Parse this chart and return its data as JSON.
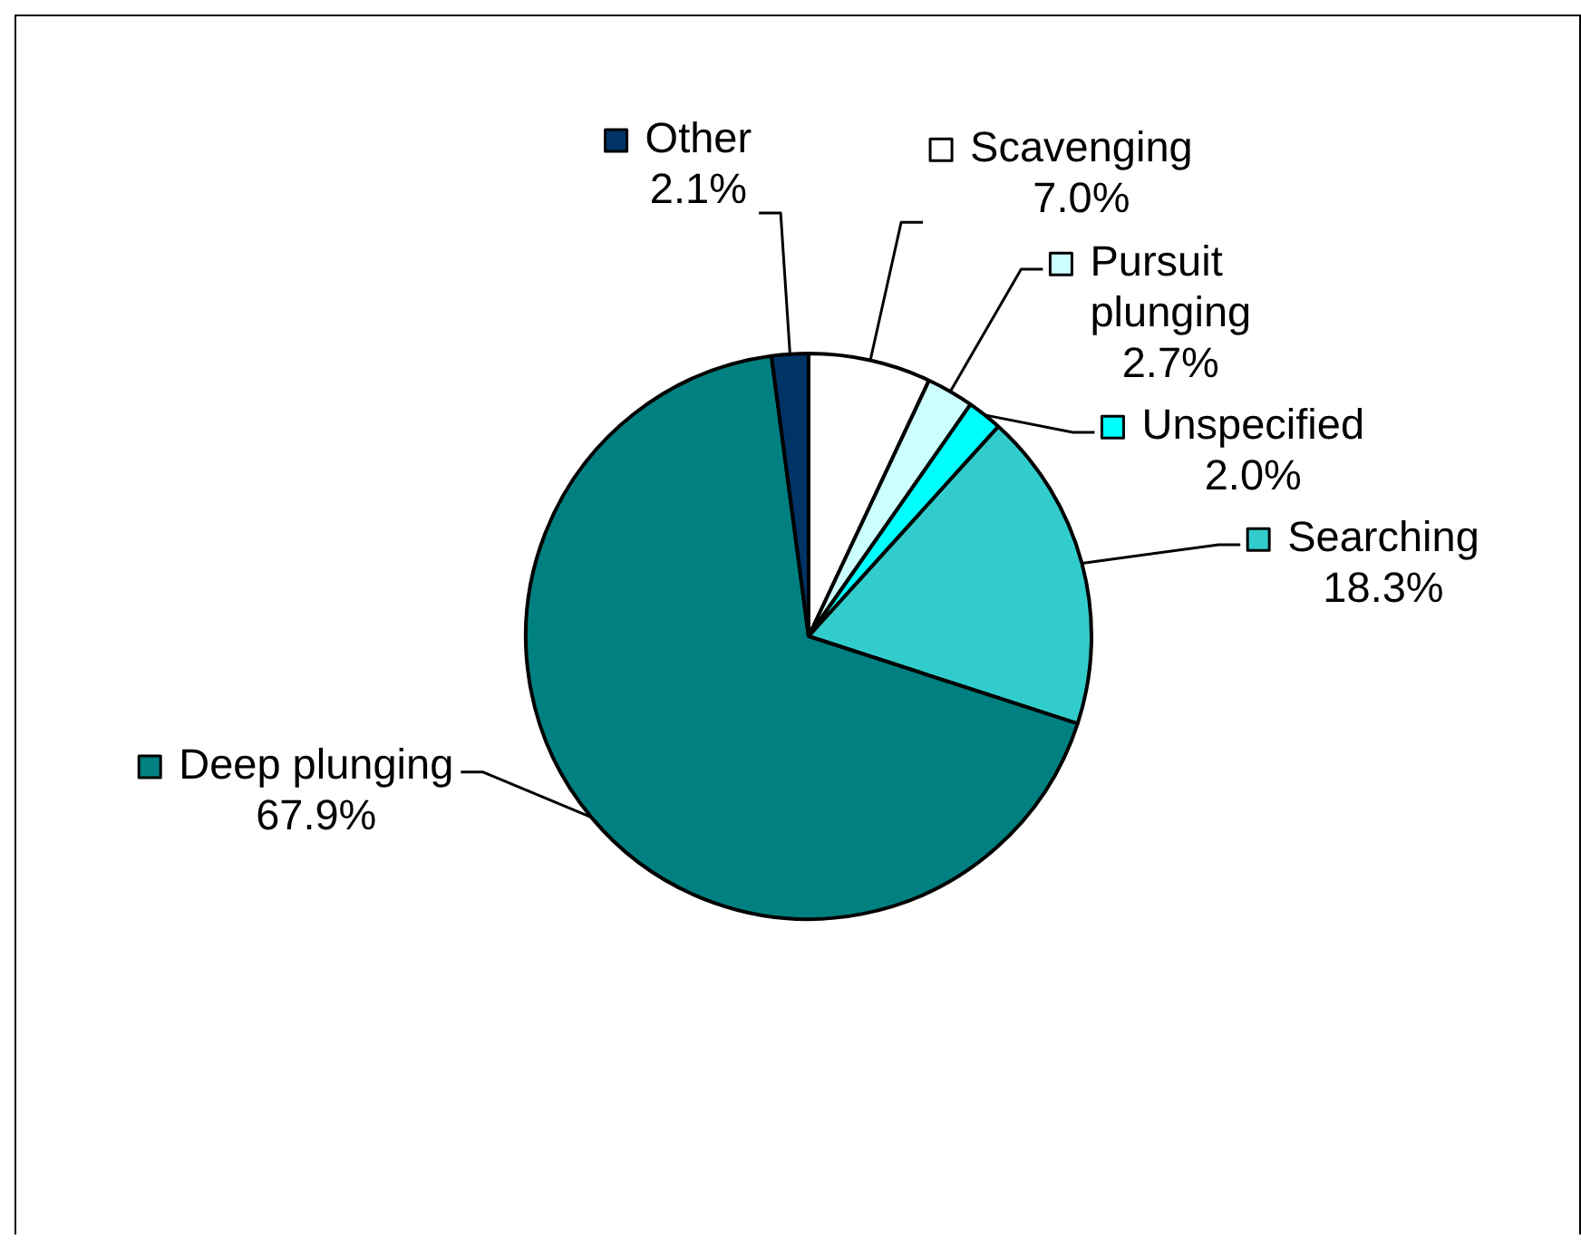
{
  "chart_data": {
    "type": "pie",
    "categories": [
      "Scavenging",
      "Pursuit plunging",
      "Unspecified",
      "Searching",
      "Deep plunging",
      "Other"
    ],
    "values": [
      7.0,
      2.7,
      2.0,
      18.3,
      67.9,
      2.1
    ],
    "colors": [
      "#ffffff",
      "#ccffff",
      "#00ffff",
      "#33cccc",
      "#008080",
      "#003366"
    ],
    "value_labels": [
      "7.0%",
      "2.7%",
      "2.0%",
      "18.3%",
      "67.9%",
      "2.1%"
    ],
    "legend": "right"
  }
}
